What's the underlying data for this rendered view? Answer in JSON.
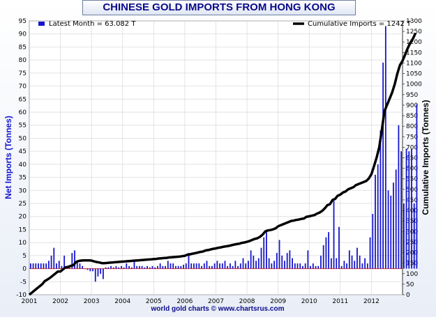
{
  "chart_data": {
    "type": "bar+line",
    "title": "CHINESE GOLD IMPORTS FROM HONG KONG",
    "left_axis_label": "Net Imports (Tonnes)",
    "right_axis_label": "Cumulative Imports (Tonnes)",
    "left_ylim": [
      -10,
      95
    ],
    "right_ylim": [
      0,
      1300
    ],
    "left_ticks": [
      -10,
      -5,
      0,
      5,
      10,
      15,
      20,
      25,
      30,
      35,
      40,
      45,
      50,
      55,
      60,
      65,
      70,
      75,
      80,
      85,
      90,
      95
    ],
    "right_ticks": [
      0,
      50,
      100,
      150,
      200,
      250,
      300,
      350,
      400,
      450,
      500,
      550,
      600,
      650,
      700,
      750,
      800,
      850,
      900,
      950,
      1000,
      1050,
      1100,
      1150,
      1200,
      1250,
      1300
    ],
    "x_ticks": [
      "2001",
      "2002",
      "2003",
      "2004",
      "2005",
      "2006",
      "2007",
      "2008",
      "2009",
      "2010",
      "2011",
      "2012"
    ],
    "x_range": [
      2001,
      2013
    ],
    "legend_bar": "Latest Month = 63.082 T",
    "legend_line": "Cumulative Imports  = 1242 T",
    "credit": "world gold charts © www.chartsrus.com",
    "bar_color": "#1515cc",
    "line_color": "#000000",
    "monthly_net_imports": [
      2,
      2,
      2,
      2,
      2,
      2,
      2,
      3,
      5,
      8,
      2,
      3,
      1,
      5,
      1,
      1,
      6,
      7,
      3,
      2,
      1,
      0,
      -0.5,
      -1,
      -1,
      -5,
      -3,
      -2,
      -4,
      0.5,
      0.5,
      1,
      0.5,
      1,
      0.5,
      1,
      0.5,
      2,
      1,
      0.5,
      3,
      1,
      1,
      1,
      0.5,
      1,
      0.5,
      1,
      0.5,
      1,
      2,
      1,
      1,
      3,
      2,
      2,
      1,
      1,
      1,
      1.5,
      2,
      6,
      2,
      2,
      2,
      2,
      1,
      2,
      3,
      1,
      1,
      2,
      3,
      2,
      2,
      3,
      1,
      2,
      1,
      3,
      1,
      2,
      4,
      2,
      3,
      7,
      5,
      3,
      4,
      8,
      12,
      14,
      4,
      2,
      3,
      6,
      11,
      5,
      3,
      6,
      7,
      4,
      2,
      2,
      2,
      1,
      2,
      7,
      1,
      2,
      1,
      1,
      5,
      9,
      12,
      14,
      4,
      26,
      4,
      16,
      1,
      3,
      2,
      7,
      5,
      3,
      8,
      5,
      2,
      4,
      2,
      12,
      21,
      36,
      40,
      53,
      79,
      93,
      30,
      28,
      33,
      38,
      55,
      45,
      25,
      46,
      45,
      46,
      25,
      63
    ],
    "cumulative_imports": [
      0,
      10,
      20,
      30,
      40,
      50,
      65,
      72,
      80,
      90,
      100,
      110,
      110,
      120,
      130,
      132,
      137,
      140,
      155,
      160,
      162,
      163,
      163,
      163,
      162,
      158,
      155,
      153,
      150,
      150,
      151,
      152,
      153,
      154,
      155,
      156,
      157,
      158,
      159,
      160,
      161,
      162,
      163,
      164,
      165,
      166,
      167,
      168,
      169,
      170,
      172,
      173,
      174,
      175,
      177,
      178,
      179,
      180,
      181,
      183,
      185,
      190,
      192,
      195,
      197,
      200,
      203,
      205,
      210,
      212,
      215,
      218,
      220,
      223,
      225,
      228,
      230,
      232,
      235,
      238,
      240,
      242,
      246,
      248,
      251,
      255,
      260,
      265,
      268,
      275,
      285,
      300,
      305,
      307,
      310,
      315,
      325,
      330,
      335,
      340,
      345,
      350,
      352,
      355,
      357,
      360,
      362,
      370,
      372,
      375,
      378,
      385,
      390,
      398,
      410,
      425,
      430,
      450,
      455,
      470,
      475,
      485,
      490,
      500,
      505,
      510,
      520,
      525,
      530,
      535,
      540,
      552,
      572,
      610,
      650,
      700,
      780,
      870,
      900,
      930,
      960,
      1000,
      1050,
      1090,
      1110,
      1140,
      1170,
      1195,
      1215,
      1242
    ]
  }
}
